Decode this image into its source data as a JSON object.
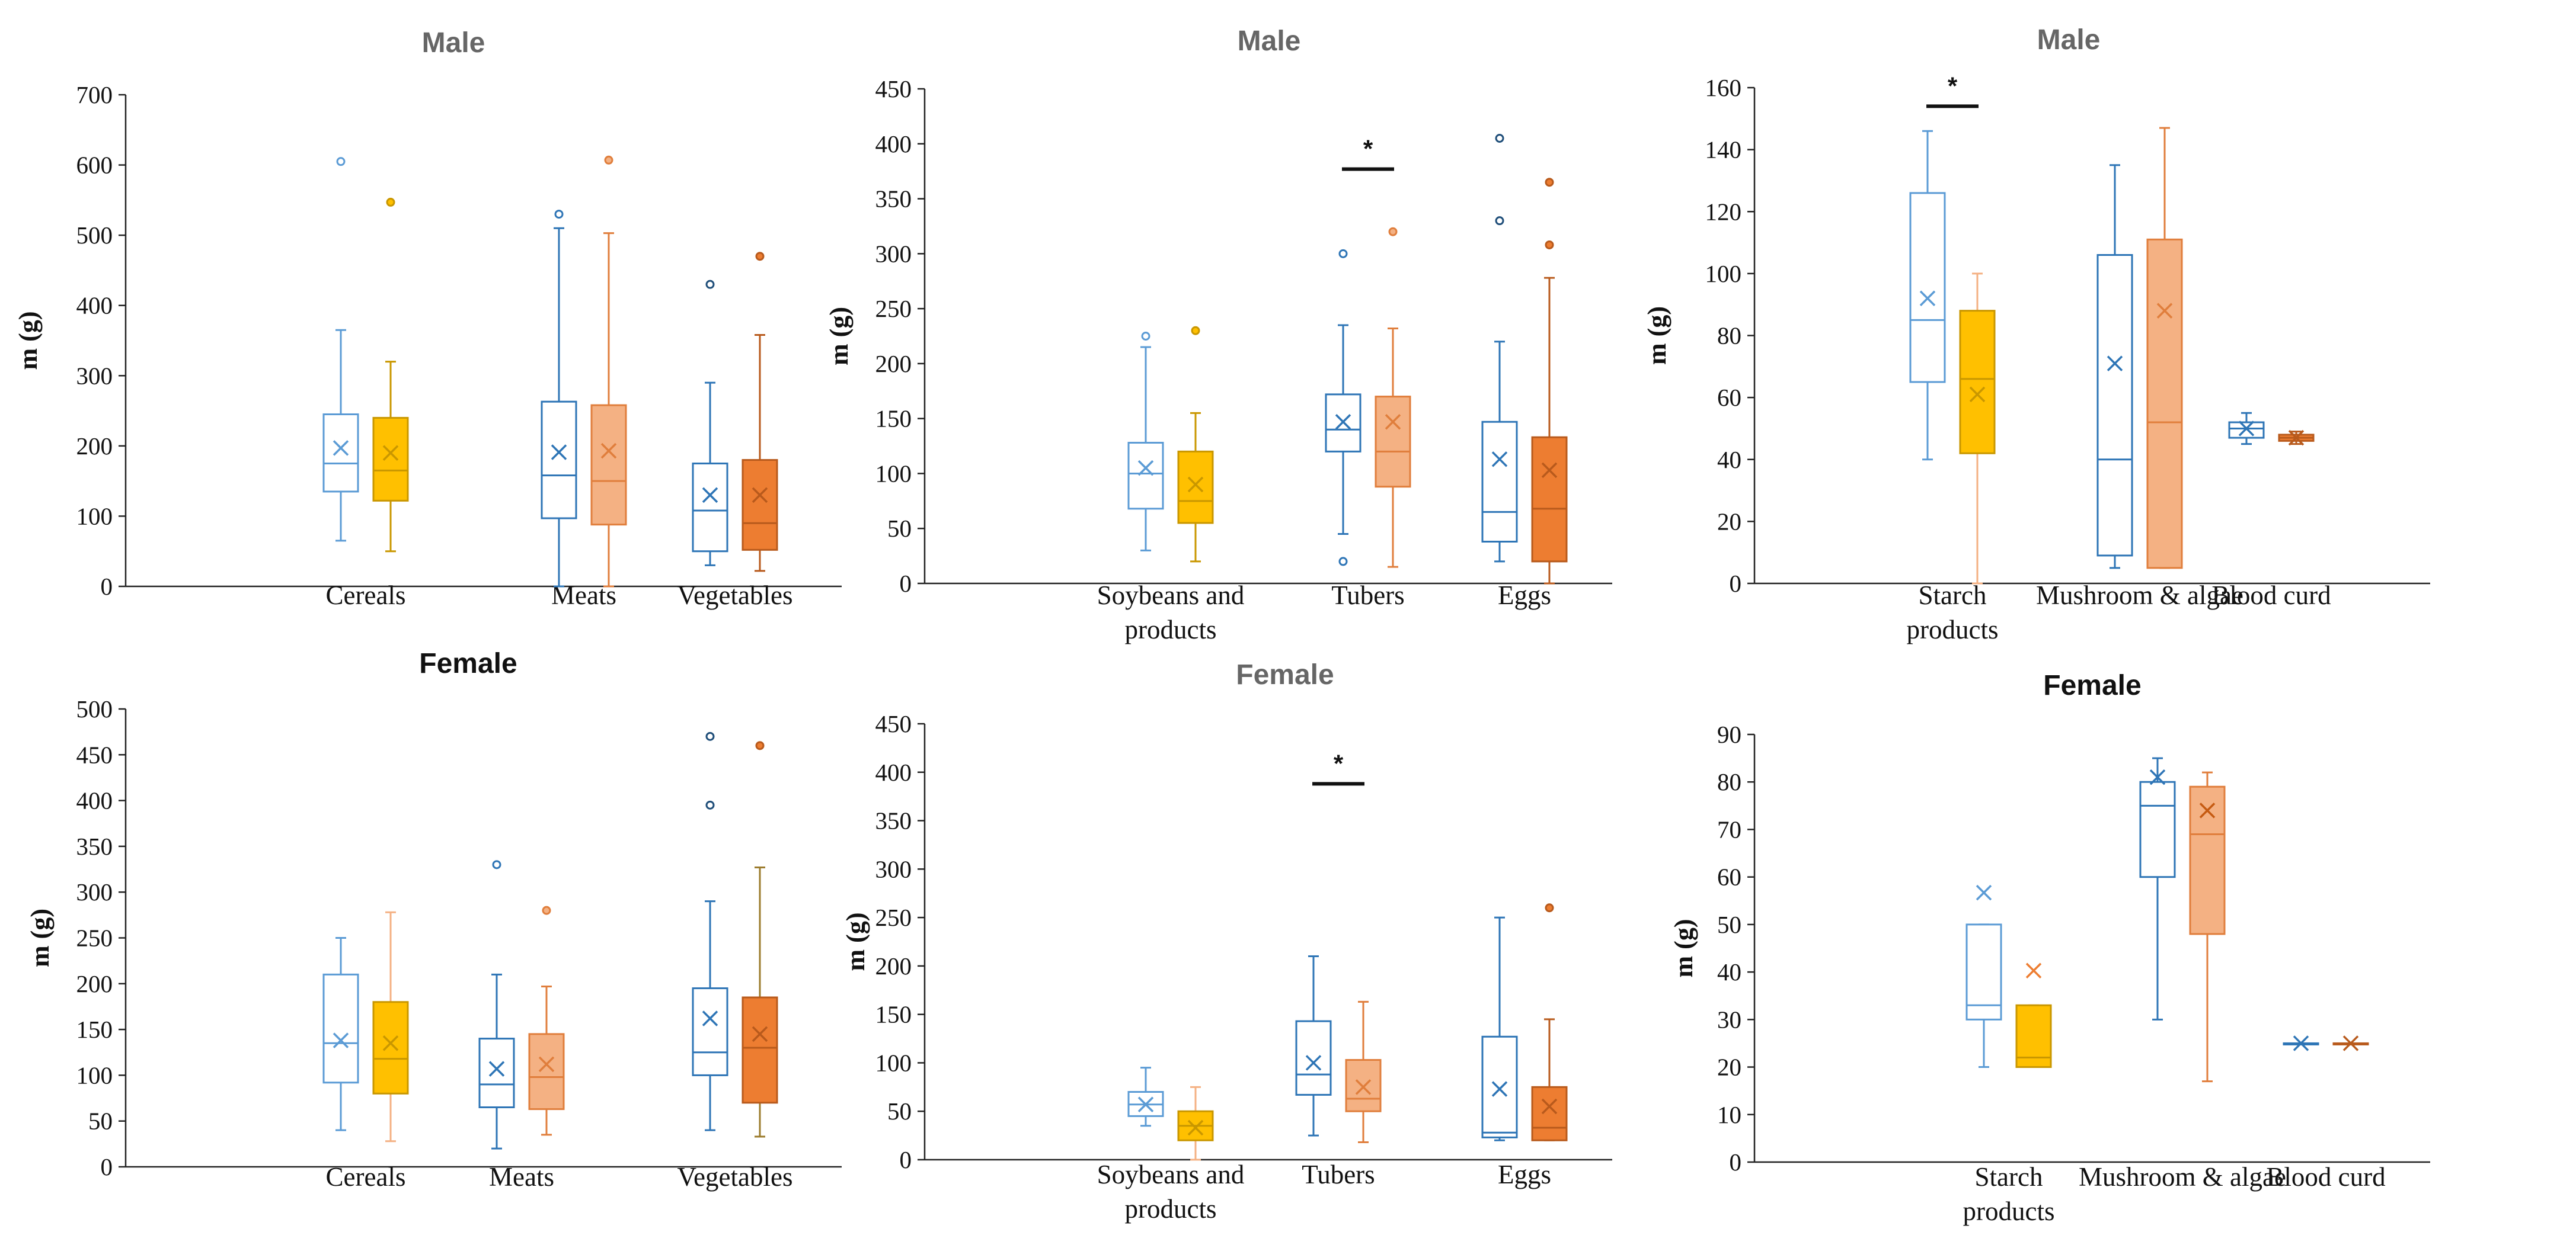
{
  "figure": {
    "description_free": true
  },
  "chart_data": [
    {
      "type": "box",
      "title": "Male",
      "title_color": "#666666",
      "ylabel": "m (g)",
      "ylim": [
        0,
        700
      ],
      "yticks": [
        0,
        100,
        200,
        300,
        400,
        500,
        600,
        700
      ],
      "categories": [
        {
          "label": [
            "Cereals"
          ],
          "boxes": [
            {
              "color": "#5B9BD5",
              "fill": "#ffffff",
              "min": 65,
              "q1": 135,
              "median": 175,
              "q3": 245,
              "max": 365,
              "mean": 197,
              "outliers": [
                605
              ]
            },
            {
              "color": "#FFC000",
              "fill": "#FFC000",
              "line": "#C99700",
              "min": 50,
              "q1": 122,
              "median": 165,
              "q3": 240,
              "max": 320,
              "mean": 190,
              "outliers": [
                547
              ]
            }
          ]
        },
        {
          "label": [
            "Meats"
          ],
          "boxes": [
            {
              "color": "#2E75B6",
              "fill": "#ffffff",
              "min": 0,
              "q1": 97,
              "median": 158,
              "q3": 263,
              "max": 510,
              "mean": 191,
              "outliers": [
                530
              ]
            },
            {
              "color": "#F4B183",
              "fill": "#F4B183",
              "line": "#E07E3C",
              "min": 0,
              "q1": 88,
              "median": 150,
              "q3": 258,
              "max": 503,
              "mean": 193,
              "outliers": [
                607
              ]
            }
          ]
        },
        {
          "label": [
            "Vegetables"
          ],
          "boxes": [
            {
              "color": "#1F4E79",
              "fill": "#ffffff",
              "line": "#2E75B6",
              "min": 30,
              "q1": 50,
              "median": 108,
              "q3": 175,
              "max": 290,
              "mean": 130,
              "outliers": [
                430
              ]
            },
            {
              "color": "#ED7D31",
              "fill": "#ED7D31",
              "line": "#B85A1C",
              "min": 22,
              "q1": 52,
              "median": 90,
              "q3": 180,
              "max": 358,
              "mean": 130,
              "outliers": [
                470
              ]
            }
          ]
        }
      ],
      "annotations": []
    },
    {
      "type": "box",
      "title": "Male",
      "title_color": "#666666",
      "ylabel": "m (g)",
      "ylim": [
        0,
        450
      ],
      "yticks": [
        0,
        50,
        100,
        150,
        200,
        250,
        300,
        350,
        400,
        450
      ],
      "categories": [
        {
          "label": [
            "Soybeans and",
            "products"
          ],
          "boxes": [
            {
              "color": "#5B9BD5",
              "fill": "#ffffff",
              "min": 30,
              "q1": 68,
              "median": 100,
              "q3": 128,
              "max": 215,
              "mean": 105,
              "outliers": [
                225
              ]
            },
            {
              "color": "#FFC000",
              "fill": "#FFC000",
              "line": "#C99700",
              "min": 20,
              "q1": 55,
              "median": 75,
              "q3": 120,
              "max": 155,
              "mean": 90,
              "outliers": [
                230
              ]
            }
          ]
        },
        {
          "label": [
            "Tubers"
          ],
          "boxes": [
            {
              "color": "#2E75B6",
              "fill": "#ffffff",
              "min": 45,
              "q1": 120,
              "median": 140,
              "q3": 172,
              "max": 235,
              "mean": 147,
              "outliers": [
                300,
                20
              ]
            },
            {
              "color": "#F4B183",
              "fill": "#F4B183",
              "line": "#E07E3C",
              "min": 15,
              "q1": 88,
              "median": 120,
              "q3": 170,
              "max": 232,
              "mean": 147,
              "outliers": [
                320
              ]
            }
          ]
        },
        {
          "label": [
            "Eggs"
          ],
          "boxes": [
            {
              "color": "#1F4E79",
              "fill": "#ffffff",
              "line": "#2E75B6",
              "min": 20,
              "q1": 38,
              "median": 65,
              "q3": 147,
              "max": 220,
              "mean": 113,
              "outliers": [
                405,
                330
              ]
            },
            {
              "color": "#ED7D31",
              "fill": "#ED7D31",
              "line": "#B85A1C",
              "min": 0,
              "q1": 20,
              "median": 68,
              "q3": 133,
              "max": 278,
              "mean": 103,
              "outliers": [
                365,
                308
              ]
            }
          ]
        }
      ],
      "annotations": [
        {
          "text": "*",
          "category_index": 1,
          "y_value": 377
        }
      ]
    },
    {
      "type": "box",
      "title": "Male",
      "title_color": "#666666",
      "ylabel": "m (g)",
      "ylim": [
        0,
        160
      ],
      "yticks": [
        0,
        20,
        40,
        60,
        80,
        100,
        120,
        140,
        160
      ],
      "categories": [
        {
          "label": [
            "Starch",
            "products"
          ],
          "boxes": [
            {
              "color": "#5B9BD5",
              "fill": "#ffffff",
              "min": 40,
              "q1": 65,
              "median": 85,
              "q3": 126,
              "max": 146,
              "mean": 92,
              "outliers": []
            },
            {
              "color": "#FFC000",
              "fill": "#FFC000",
              "line": "#C99700",
              "whisker_color": "#F4B183",
              "min": 0,
              "q1": 42,
              "median": 66,
              "q3": 88,
              "max": 100,
              "mean": 61,
              "outliers": []
            }
          ]
        },
        {
          "label": [
            "Mushroom & algae"
          ],
          "boxes": [
            {
              "color": "#2E75B6",
              "fill": "#ffffff",
              "min": 5,
              "q1": 9,
              "median": 40,
              "q3": 106,
              "max": 135,
              "mean": 71,
              "outliers": []
            },
            {
              "color": "#F4B183",
              "fill": "#F4B183",
              "line": "#E07E3C",
              "min": 5,
              "q1": 5,
              "median": 52,
              "q3": 111,
              "max": 147,
              "mean": 88,
              "outliers": []
            }
          ]
        },
        {
          "label": [
            "Blood curd"
          ],
          "boxes": [
            {
              "color": "#1F4E79",
              "fill": "#ffffff",
              "line": "#2E75B6",
              "min": 45,
              "q1": 47,
              "median": 50,
              "q3": 52,
              "max": 55,
              "mean": 50,
              "outliers": []
            },
            {
              "color": "#ED7D31",
              "fill": "#ED7D31",
              "line": "#B85A1C",
              "min": 45,
              "q1": 46,
              "median": 47,
              "q3": 48,
              "max": 49,
              "mean": 47,
              "outliers": []
            }
          ]
        }
      ],
      "annotations": [
        {
          "text": "*",
          "category_index": 0,
          "y_value": 154
        }
      ]
    },
    {
      "type": "box",
      "title": "Female",
      "title_color": "#111111",
      "ylabel": "m (g)",
      "ylim": [
        0,
        500
      ],
      "yticks": [
        0,
        50,
        100,
        150,
        200,
        250,
        300,
        350,
        400,
        450,
        500
      ],
      "categories": [
        {
          "label": [
            "Cereals"
          ],
          "boxes": [
            {
              "color": "#5B9BD5",
              "fill": "#ffffff",
              "min": 40,
              "q1": 92,
              "median": 135,
              "q3": 210,
              "max": 250,
              "mean": 138,
              "outliers": []
            },
            {
              "color": "#FFC000",
              "fill": "#FFC000",
              "line": "#C99700",
              "whisker_color": "#F4B183",
              "min": 28,
              "q1": 80,
              "median": 118,
              "q3": 180,
              "max": 278,
              "mean": 135,
              "outliers": []
            }
          ]
        },
        {
          "label": [
            "Meats"
          ],
          "boxes": [
            {
              "color": "#2E75B6",
              "fill": "#ffffff",
              "min": 20,
              "q1": 65,
              "median": 90,
              "q3": 140,
              "max": 210,
              "mean": 107,
              "outliers": [
                330
              ]
            },
            {
              "color": "#F4B183",
              "fill": "#F4B183",
              "line": "#E07E3C",
              "min": 35,
              "q1": 63,
              "median": 98,
              "q3": 145,
              "max": 197,
              "mean": 112,
              "outliers": [
                280
              ]
            }
          ]
        },
        {
          "label": [
            "Vegetables"
          ],
          "boxes": [
            {
              "color": "#1F4E79",
              "fill": "#ffffff",
              "line": "#2E75B6",
              "min": 40,
              "q1": 100,
              "median": 125,
              "q3": 195,
              "max": 290,
              "mean": 162,
              "outliers": [
                470,
                395
              ]
            },
            {
              "color": "#ED7D31",
              "fill": "#ED7D31",
              "line": "#B85A1C",
              "whisker_color": "#9C7C2E",
              "min": 33,
              "q1": 70,
              "median": 130,
              "q3": 185,
              "max": 327,
              "mean": 145,
              "outliers": [
                460
              ]
            }
          ]
        }
      ],
      "annotations": []
    },
    {
      "type": "box",
      "title": "Female",
      "title_color": "#666666",
      "ylabel": "m (g)",
      "ylim": [
        0,
        450
      ],
      "yticks": [
        0,
        50,
        100,
        150,
        200,
        250,
        300,
        350,
        400,
        450
      ],
      "categories": [
        {
          "label": [
            "Soybeans and",
            "products"
          ],
          "boxes": [
            {
              "color": "#5B9BD5",
              "fill": "#ffffff",
              "min": 35,
              "q1": 45,
              "median": 57,
              "q3": 70,
              "max": 95,
              "mean": 57,
              "outliers": []
            },
            {
              "color": "#FFC000",
              "fill": "#FFC000",
              "line": "#C99700",
              "whisker_color": "#F4B183",
              "min": 0,
              "q1": 20,
              "median": 35,
              "q3": 50,
              "max": 75,
              "mean": 33,
              "outliers": []
            }
          ]
        },
        {
          "label": [
            "Tubers"
          ],
          "boxes": [
            {
              "color": "#2E75B6",
              "fill": "#ffffff",
              "min": 25,
              "q1": 67,
              "median": 88,
              "q3": 143,
              "max": 210,
              "mean": 100,
              "outliers": []
            },
            {
              "color": "#F4B183",
              "fill": "#F4B183",
              "line": "#E07E3C",
              "min": 18,
              "q1": 50,
              "median": 63,
              "q3": 103,
              "max": 163,
              "mean": 75,
              "outliers": []
            }
          ]
        },
        {
          "label": [
            "Eggs"
          ],
          "boxes": [
            {
              "color": "#1F4E79",
              "fill": "#ffffff",
              "line": "#2E75B6",
              "min": 20,
              "q1": 23,
              "median": 28,
              "q3": 127,
              "max": 250,
              "mean": 73,
              "outliers": []
            },
            {
              "color": "#ED7D31",
              "fill": "#ED7D31",
              "line": "#B85A1C",
              "min": 20,
              "q1": 20,
              "median": 33,
              "q3": 75,
              "max": 145,
              "mean": 55,
              "outliers": [
                260
              ]
            }
          ]
        }
      ],
      "annotations": [
        {
          "text": "*",
          "category_index": 1,
          "y_value": 388
        }
      ]
    },
    {
      "type": "box",
      "title": "Female",
      "title_color": "#111111",
      "ylabel": "m (g)",
      "ylim": [
        0,
        90
      ],
      "yticks": [
        0,
        10,
        20,
        30,
        40,
        50,
        60,
        70,
        80,
        90
      ],
      "categories": [
        {
          "label": [
            "Starch",
            "products"
          ],
          "boxes": [
            {
              "color": "#5B9BD5",
              "fill": "#ffffff",
              "min": 20,
              "q1": 30,
              "median": 33,
              "q3": 50,
              "max": 50,
              "mean": 56.7,
              "outliers": []
            },
            {
              "color": "#FFC000",
              "fill": "#FFC000",
              "line": "#C99700",
              "whisker_color": "#F4B183",
              "mean_color": "#ED7D31",
              "min": 20,
              "q1": 20,
              "median": 22,
              "q3": 33,
              "max": 33,
              "mean": 40.3,
              "outliers": []
            }
          ]
        },
        {
          "label": [
            "Mushroom & algae"
          ],
          "boxes": [
            {
              "color": "#2E75B6",
              "fill": "#ffffff",
              "min": 30,
              "q1": 60,
              "median": 75,
              "q3": 80,
              "max": 85,
              "mean": 81,
              "outliers": []
            },
            {
              "color": "#F4B183",
              "fill": "#F4B183",
              "line": "#E07E3C",
              "mean_color": "#C55A11",
              "min": 17,
              "q1": 48,
              "median": 69,
              "q3": 79,
              "max": 82,
              "mean": 74,
              "outliers": []
            }
          ]
        },
        {
          "label": [
            "Blood curd"
          ],
          "boxes": [
            {
              "color": "#1F4E79",
              "fill": "#ffffff",
              "line": "#2E75B6",
              "min": 25,
              "q1": 25,
              "median": 25,
              "q3": 25,
              "max": 25,
              "mean": 25,
              "outliers": []
            },
            {
              "color": "#ED7D31",
              "fill": "#ED7D31",
              "line": "#B85A1C",
              "min": 25,
              "q1": 25,
              "median": 25,
              "q3": 25,
              "max": 25,
              "mean": 25,
              "outliers": []
            }
          ]
        }
      ],
      "annotations": []
    }
  ]
}
